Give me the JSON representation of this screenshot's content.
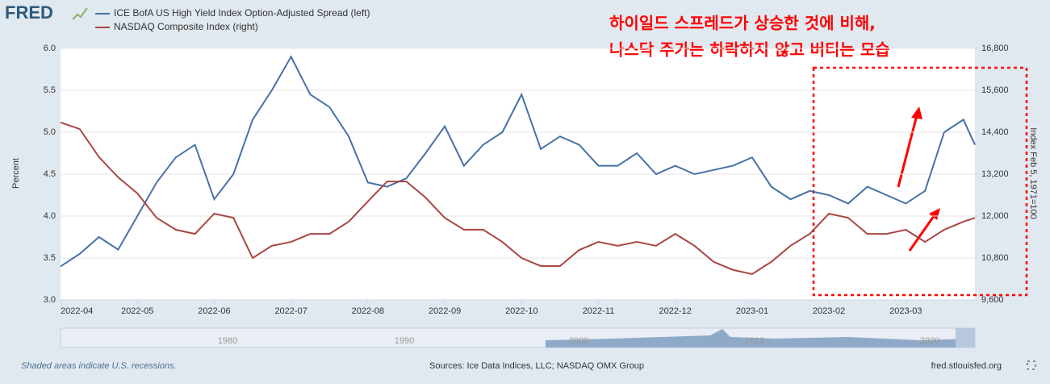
{
  "logo": "FRED",
  "annotation": [
    "하이일드 스프레드가 상승한 것에 비해,",
    "나스닥 주가는 하락하지 않고 버티는 모습"
  ],
  "navigator": {
    "labels": [
      "1980",
      "1990",
      "2000",
      "2010",
      "2020"
    ]
  },
  "footer": {
    "note": "Shaded areas indicate U.S. recessions.",
    "sources": "Sources: Ice Data Indices, LLC; NASDAQ OMX Group",
    "site": "fred.stlouisfed.org"
  },
  "chart_data": {
    "type": "line",
    "ylabel": "Percent",
    "y2label": "Index Feb 5, 1971=100",
    "xlim": [
      0,
      11.9
    ],
    "xticks": [
      {
        "value": 0,
        "label": "2022-04"
      },
      {
        "value": 1,
        "label": "2022-05"
      },
      {
        "value": 2,
        "label": "2022-06"
      },
      {
        "value": 3,
        "label": "2022-07"
      },
      {
        "value": 4,
        "label": "2022-08"
      },
      {
        "value": 5,
        "label": "2022-09"
      },
      {
        "value": 6,
        "label": "2022-10"
      },
      {
        "value": 7,
        "label": "2022-11"
      },
      {
        "value": 8,
        "label": "2022-12"
      },
      {
        "value": 9,
        "label": "2023-01"
      },
      {
        "value": 10,
        "label": "2023-02"
      },
      {
        "value": 11,
        "label": "2023-03"
      }
    ],
    "ylim": [
      3,
      6
    ],
    "yticks": [
      {
        "value": 3,
        "label": "3.0"
      },
      3.5,
      {
        "value": 4,
        "label": "4.0"
      },
      4.5,
      {
        "value": 5,
        "label": "5.0"
      },
      5.5,
      {
        "value": 6,
        "label": "6.0"
      }
    ],
    "y2lim": [
      9600,
      16800
    ],
    "y2ticks": [
      {
        "value": 9600,
        "label": "9,600"
      },
      {
        "value": 10800,
        "label": "10,800"
      },
      {
        "value": 12000,
        "label": "12,000"
      },
      {
        "value": 13200,
        "label": "13,200"
      },
      {
        "value": 14400,
        "label": "14,400"
      },
      {
        "value": 15600,
        "label": "15,600"
      },
      {
        "value": 16800,
        "label": "16,800"
      }
    ],
    "grid": true,
    "x": [
      0,
      0.25,
      0.5,
      0.75,
      1,
      1.25,
      1.5,
      1.75,
      2,
      2.25,
      2.5,
      2.75,
      3,
      3.25,
      3.5,
      3.75,
      4,
      4.25,
      4.5,
      4.75,
      5,
      5.25,
      5.5,
      5.75,
      6,
      6.25,
      6.5,
      6.75,
      7,
      7.25,
      7.5,
      7.75,
      8,
      8.25,
      8.5,
      8.75,
      9,
      9.25,
      9.5,
      9.75,
      10,
      10.25,
      10.5,
      10.75,
      11,
      11.25,
      11.5,
      11.75,
      11.9
    ],
    "series": [
      {
        "name": "ICE BofA US High Yield Index Option-Adjusted Spread (left)",
        "color": "#4572a7",
        "values": [
          3.4,
          3.55,
          3.75,
          3.6,
          4.0,
          4.4,
          4.7,
          4.85,
          4.2,
          4.5,
          5.15,
          5.5,
          5.9,
          5.45,
          5.3,
          4.95,
          4.4,
          4.35,
          4.45,
          4.75,
          5.07,
          4.6,
          4.85,
          5.0,
          5.45,
          4.8,
          4.95,
          4.85,
          4.6,
          4.6,
          4.75,
          4.5,
          4.6,
          4.5,
          4.55,
          4.6,
          4.7,
          4.35,
          4.2,
          4.3,
          4.25,
          4.15,
          4.35,
          4.25,
          4.15,
          4.3,
          5.0,
          5.15,
          4.85
        ]
      },
      {
        "name": "NASDAQ Composite Index (right)",
        "color": "#aa4643",
        "axis": "y2",
        "values": [
          14680,
          14490,
          13690,
          13110,
          12650,
          11950,
          11610,
          11490,
          12070,
          11950,
          10800,
          11150,
          11260,
          11490,
          11490,
          11840,
          12420,
          12990,
          12990,
          12530,
          11950,
          11610,
          11610,
          11260,
          10800,
          10570,
          10570,
          11030,
          11260,
          11150,
          11260,
          11150,
          11490,
          11150,
          10690,
          10460,
          10340,
          10690,
          11150,
          11490,
          12070,
          11950,
          11490,
          11490,
          11610,
          11260,
          11610,
          11840,
          11950
        ]
      }
    ]
  }
}
